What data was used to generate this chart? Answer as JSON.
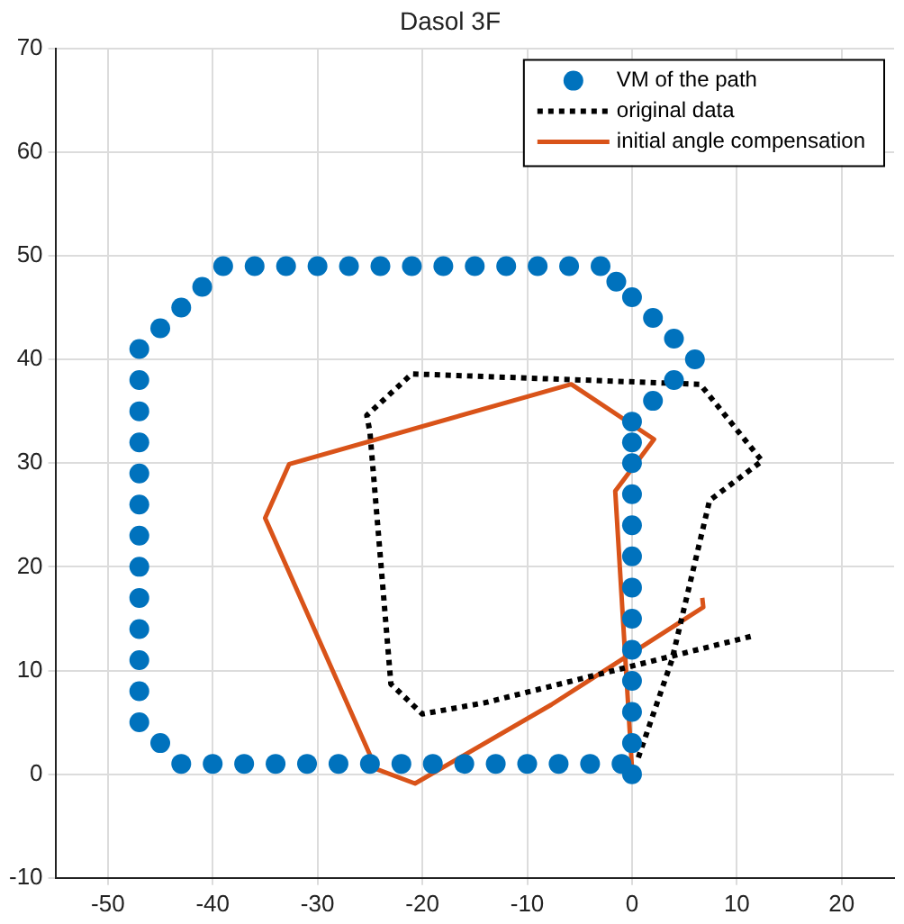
{
  "chart_data": {
    "type": "scatter",
    "title": "Dasol 3F",
    "xlim": [
      -55,
      25
    ],
    "xticks": [
      -50,
      -40,
      -30,
      -20,
      -10,
      0,
      10,
      20
    ],
    "ylim": [
      -10,
      70
    ],
    "yticks": [
      -10,
      0,
      10,
      20,
      30,
      40,
      50,
      60,
      70
    ],
    "grid": true,
    "legend": "top right",
    "series": [
      {
        "name": "VM of the path",
        "type": "scatter",
        "marker": "circle",
        "color": "#0072bd",
        "x": [
          0,
          0,
          0,
          0,
          0,
          0,
          0,
          0,
          0,
          0,
          0,
          0,
          0,
          2,
          4,
          6,
          4,
          2,
          0,
          -1.5,
          -3,
          -6,
          -9,
          -12,
          -15,
          -18,
          -21,
          -24,
          -27,
          -30,
          -33,
          -36,
          -39,
          -41,
          -43,
          -45,
          -47,
          -47,
          -47,
          -47,
          -47,
          -47,
          -47,
          -47,
          -47,
          -47,
          -47,
          -47,
          -47,
          -45,
          -43,
          -40,
          -37,
          -34,
          -31,
          -28,
          -25,
          -22,
          -19,
          -16,
          -13,
          -10,
          -7,
          -4,
          -1
        ],
        "values": [
          0,
          3,
          6,
          9,
          12,
          15,
          18,
          21,
          24,
          27,
          30,
          32,
          34,
          36,
          38,
          40,
          42,
          44,
          46,
          47.5,
          49,
          49,
          49,
          49,
          49,
          49,
          49,
          49,
          49,
          49,
          49,
          49,
          49,
          47,
          45,
          43,
          41,
          38,
          35,
          32,
          29,
          26,
          23,
          20,
          17,
          14,
          11,
          8,
          5,
          3,
          1,
          1,
          1,
          1,
          1,
          1,
          1,
          1,
          1,
          1,
          1,
          1,
          1,
          1,
          1
        ]
      },
      {
        "name": "original data",
        "type": "line",
        "marker": "none",
        "line_style": "dotted",
        "color": "#000000",
        "x": [
          0.6,
          3.8,
          7.4,
          12.4,
          6.5,
          -21,
          -25.3,
          -25,
          -23,
          -20,
          -14,
          11.8
        ],
        "values": [
          1.6,
          11,
          26.4,
          30.2,
          37.6,
          38.6,
          34.6,
          33,
          8.7,
          5.8,
          6.9,
          13.4
        ]
      },
      {
        "name": "initial angle compensation",
        "type": "line",
        "marker": "none",
        "line_style": "solid",
        "color": "#d95319",
        "x": [
          0,
          -1.6,
          2.1,
          -5.8,
          -32.7,
          -35,
          -24.4,
          -20.7,
          -7.7,
          6.8,
          6.7
        ],
        "values": [
          0.5,
          27.3,
          32.3,
          37.6,
          29.9,
          24.7,
          0.5,
          -0.9,
          6.7,
          16.1,
          17
        ]
      }
    ]
  }
}
